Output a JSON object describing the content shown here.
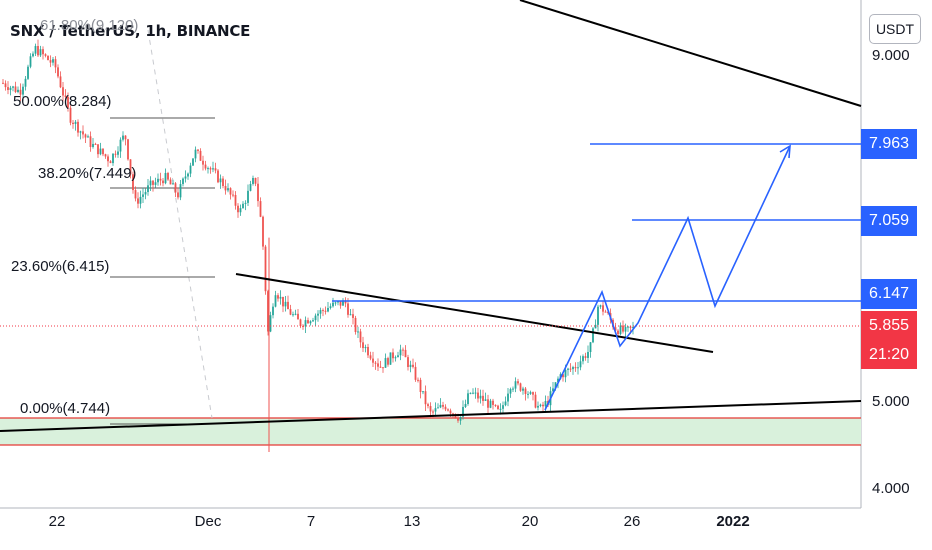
{
  "header": {
    "title": "SNX / TetherUS, 1h, BINANCE",
    "currency": "USDT"
  },
  "chart_data": {
    "type": "candlestick",
    "symbol": "SNX / TetherUS",
    "interval": "1h",
    "exchange": "BINANCE",
    "y_ticks": [
      "9.000",
      "5.000",
      "4.000"
    ],
    "x_ticks": [
      {
        "label": "22",
        "bold": false
      },
      {
        "label": "Dec",
        "bold": false
      },
      {
        "label": "7",
        "bold": false
      },
      {
        "label": "13",
        "bold": false
      },
      {
        "label": "20",
        "bold": false
      },
      {
        "label": "26",
        "bold": false
      },
      {
        "label": "2022",
        "bold": true
      }
    ],
    "fib_levels": [
      {
        "label": "61.80%(9.120)",
        "value": 9.12
      },
      {
        "label": "50.00%(8.284)",
        "value": 8.284
      },
      {
        "label": "38.20%(7.449)",
        "value": 7.449
      },
      {
        "label": "23.60%(6.415)",
        "value": 6.415
      },
      {
        "label": "0.00%(4.744)",
        "value": 4.744
      }
    ],
    "target_levels": [
      {
        "label": "7.963",
        "value": 7.963
      },
      {
        "label": "7.059",
        "value": 7.059
      },
      {
        "label": "6.147",
        "value": 6.147
      }
    ],
    "current_price": {
      "label": "5.855",
      "countdown": "21:20",
      "value": 5.855
    },
    "support_zone": [
      4.49,
      4.78
    ],
    "colors": {
      "up": "#26a69a",
      "down": "#ef5350",
      "target": "#2962ff",
      "current": "#f23645",
      "zone": "#d9f1dc"
    }
  }
}
